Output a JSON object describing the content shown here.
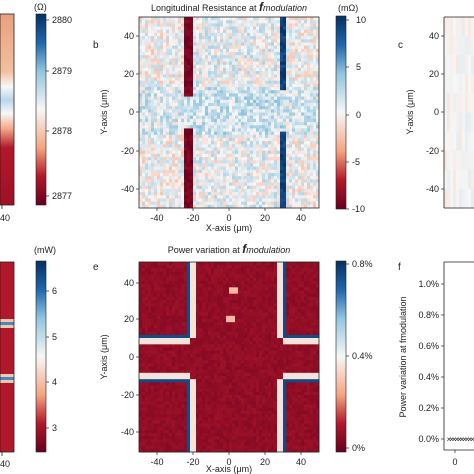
{
  "colors": {
    "red": "#b2182b",
    "white": "#f7f7f7",
    "blue": "#2166ac",
    "dark_red": "#67001f",
    "dark_blue": "#053061",
    "scatter": "#2a5e3a"
  },
  "panels": {
    "a": {
      "colorbar_unit": "(Ω)",
      "colorbar_ticks": [
        "2880",
        "2879",
        "2878",
        "2877"
      ],
      "x_tick": "40"
    },
    "b": {
      "letter": "b",
      "title_prefix": "Longitudinal Resistance at ",
      "title_emph": "f",
      "title_sub": "modulation",
      "xlabel": "X-axis (μm)",
      "ylabel": "Y-axis (μm)",
      "xticks": [
        "-40",
        "-20",
        "0",
        "20",
        "40"
      ],
      "yticks": [
        "40",
        "20",
        "0",
        "-20",
        "-40"
      ],
      "colorbar_unit": "(mΩ)",
      "colorbar_ticks": [
        "10",
        "5",
        "0",
        "-5",
        "-10"
      ]
    },
    "c": {
      "letter": "c",
      "ylabel": "Y-axis (μm)",
      "yticks": [
        "40",
        "20",
        "0",
        "-20",
        "-40"
      ]
    },
    "d": {
      "colorbar_unit": "(mW)",
      "colorbar_ticks": [
        "6",
        "5",
        "4",
        "3"
      ],
      "x_tick": "40"
    },
    "e": {
      "letter": "e",
      "title_prefix": "Power variation at ",
      "title_emph": "f",
      "title_sub": "modulation",
      "xlabel": "X-axis (μm)",
      "ylabel": "Y-axis (μm)",
      "xticks": [
        "-40",
        "-20",
        "0",
        "20",
        "40"
      ],
      "yticks": [
        "40",
        "20",
        "0",
        "-20",
        "-40"
      ],
      "colorbar_ticks": [
        "0.8%",
        "0.4%",
        "0%"
      ]
    },
    "f": {
      "letter": "f",
      "ylabel": "Power variation at fmodulation",
      "yticks": [
        "1.0%",
        "0.8%",
        "0.6%",
        "0.4%",
        "0.2%",
        "0.0%"
      ],
      "xticks": [
        "0"
      ]
    }
  },
  "chart_data": [
    {
      "type": "heatmap",
      "panel": "a",
      "quantity": "resistance",
      "unit": "Ω",
      "colorbar_range": [
        2876.6,
        2880.2
      ]
    },
    {
      "type": "heatmap",
      "panel": "b",
      "title": "Longitudinal Resistance at fmodulation",
      "xlabel": "X-axis (μm)",
      "ylabel": "Y-axis (μm)",
      "unit": "mΩ",
      "xlim": [
        -50,
        50
      ],
      "ylim": [
        -50,
        50
      ],
      "colorbar_range": [
        -10,
        10
      ],
      "features": [
        {
          "kind": "negative-stripe",
          "x": -22,
          "value": -10,
          "gap_y": [
            -8,
            8
          ]
        },
        {
          "kind": "positive-stripe",
          "x": 30,
          "value": 10,
          "gap_y": [
            -10,
            12
          ]
        }
      ]
    },
    {
      "type": "heatmap",
      "panel": "c",
      "ylabel": "Y-axis (μm)",
      "ylim": [
        -50,
        50
      ]
    },
    {
      "type": "heatmap",
      "panel": "d",
      "unit": "mW",
      "colorbar_range": [
        2.5,
        6.7
      ]
    },
    {
      "type": "heatmap",
      "panel": "e",
      "title": "Power variation at fmodulation",
      "xlabel": "X-axis (μm)",
      "ylabel": "Y-axis (μm)",
      "xlim": [
        -50,
        50
      ],
      "ylim": [
        -50,
        50
      ],
      "colorbar_range": [
        0,
        0.8
      ],
      "features": [
        {
          "kind": "cross-edges",
          "arm_x": [
            -22,
            30
          ],
          "arm_y": [
            -12,
            10
          ],
          "value": 0.8
        }
      ]
    },
    {
      "type": "scatter",
      "panel": "f",
      "ylabel": "Power variation at fmodulation",
      "ylim": [
        0,
        1.1
      ],
      "x": [
        0,
        1,
        2,
        3,
        4,
        5,
        6,
        7,
        8,
        9
      ],
      "y": [
        0.0,
        0.0,
        0.0,
        0.0,
        0.0,
        0.0,
        0.0,
        0.0,
        0.0,
        0.0
      ]
    }
  ]
}
